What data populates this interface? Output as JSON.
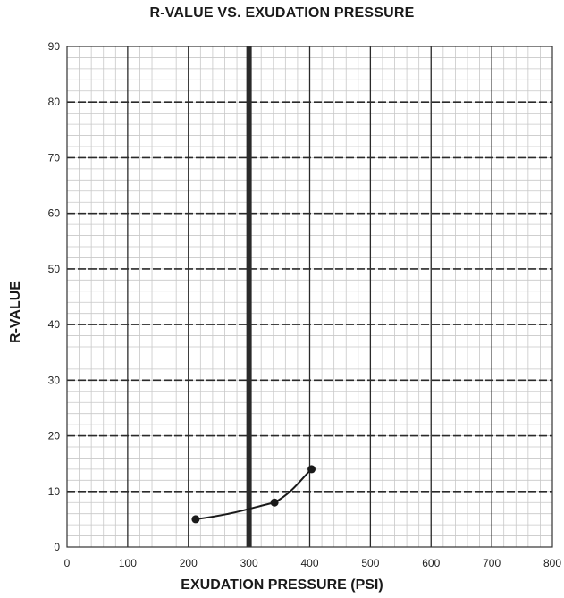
{
  "chart_data": {
    "type": "line",
    "title": "R-VALUE VS. EXUDATION PRESSURE",
    "xlabel": "EXUDATION PRESSURE (PSI)",
    "ylabel": "R-VALUE",
    "xlim": [
      0,
      800
    ],
    "ylim": [
      0,
      90
    ],
    "x_ticks": [
      0,
      100,
      200,
      300,
      400,
      500,
      600,
      700,
      800
    ],
    "y_ticks": [
      0,
      10,
      20,
      30,
      40,
      50,
      60,
      70,
      80,
      90
    ],
    "grid": true,
    "reference_line_x": 300,
    "series": [
      {
        "points": [
          {
            "x": 212,
            "y": 5
          },
          {
            "x": 342,
            "y": 8
          },
          {
            "x": 403,
            "y": 14
          }
        ]
      }
    ],
    "colors": {
      "line": "#1a1a1a",
      "grid_minor": "#c8c8c8",
      "grid_major": "#2a2a2a"
    }
  }
}
